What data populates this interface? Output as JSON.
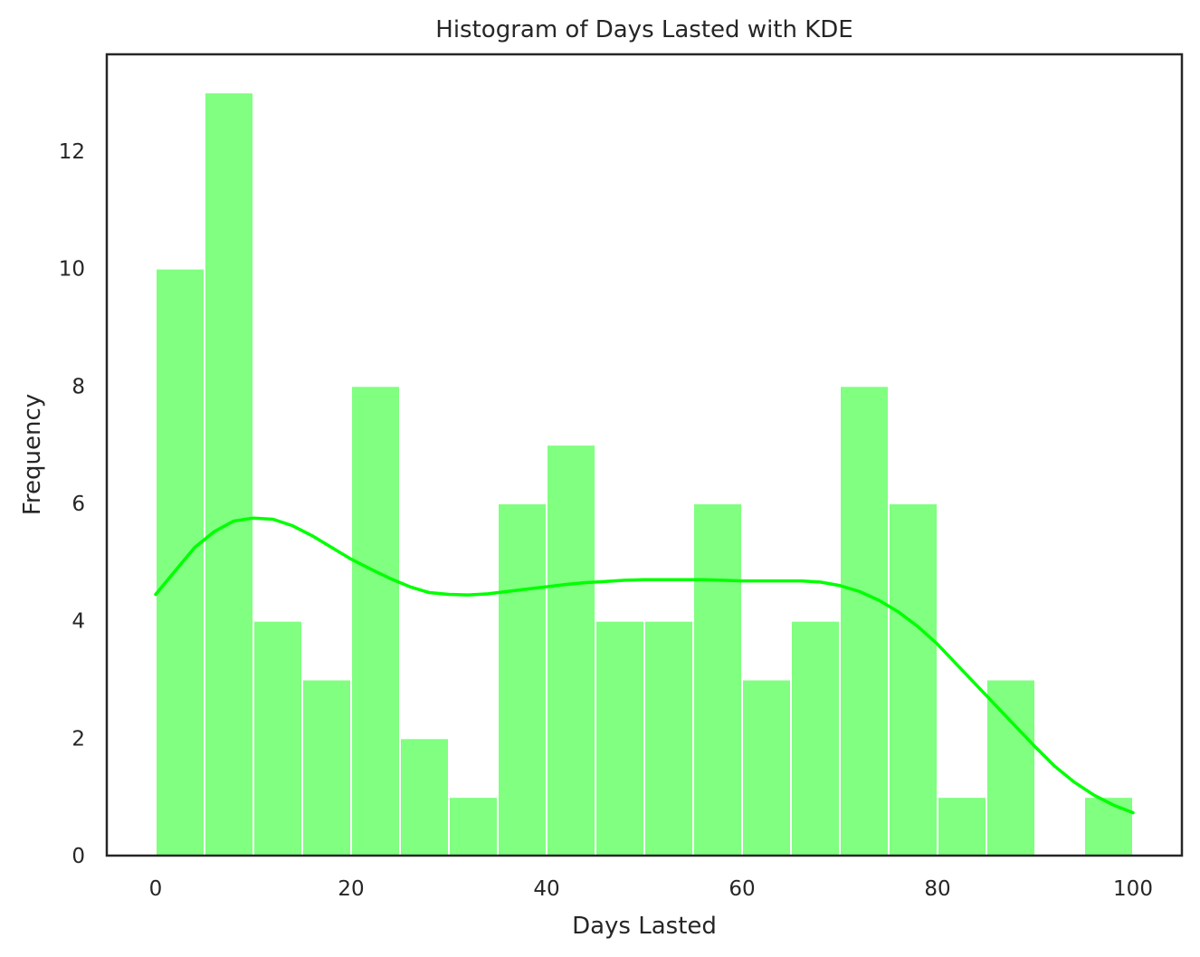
{
  "chart_data": {
    "type": "bar",
    "title": "Histogram of Days Lasted with KDE",
    "xlabel": "Days Lasted",
    "ylabel": "Frequency",
    "xlim": [
      -5,
      105
    ],
    "ylim": [
      0,
      13.65
    ],
    "xticks": [
      0,
      20,
      40,
      60,
      80,
      100
    ],
    "yticks": [
      0,
      2,
      4,
      6,
      8,
      10,
      12
    ],
    "bin_edges": [
      0,
      5,
      10,
      15,
      20,
      25,
      30,
      35,
      40,
      45,
      50,
      55,
      60,
      65,
      70,
      75,
      80,
      85,
      90,
      95,
      100
    ],
    "values": [
      10,
      13,
      4,
      3,
      8,
      2,
      1,
      6,
      7,
      4,
      4,
      6,
      3,
      4,
      8,
      6,
      1,
      3,
      0,
      1
    ],
    "bar_color": "#80ff80",
    "kde": {
      "color": "#00ff00",
      "x": [
        0,
        2,
        4,
        6,
        8,
        10,
        12,
        14,
        16,
        18,
        20,
        22,
        24,
        26,
        28,
        30,
        32,
        34,
        36,
        38,
        40,
        42,
        44,
        46,
        48,
        50,
        52,
        54,
        56,
        58,
        60,
        62,
        64,
        66,
        68,
        70,
        72,
        74,
        76,
        78,
        80,
        82,
        84,
        86,
        88,
        90,
        92,
        94,
        96,
        98,
        100
      ],
      "y": [
        4.45,
        4.85,
        5.25,
        5.52,
        5.7,
        5.75,
        5.73,
        5.62,
        5.45,
        5.25,
        5.05,
        4.88,
        4.72,
        4.58,
        4.48,
        4.45,
        4.44,
        4.46,
        4.5,
        4.54,
        4.58,
        4.62,
        4.65,
        4.67,
        4.69,
        4.7,
        4.7,
        4.7,
        4.7,
        4.69,
        4.68,
        4.68,
        4.68,
        4.68,
        4.66,
        4.6,
        4.5,
        4.35,
        4.15,
        3.9,
        3.6,
        3.25,
        2.9,
        2.55,
        2.2,
        1.85,
        1.52,
        1.25,
        1.03,
        0.86,
        0.73
      ]
    }
  }
}
